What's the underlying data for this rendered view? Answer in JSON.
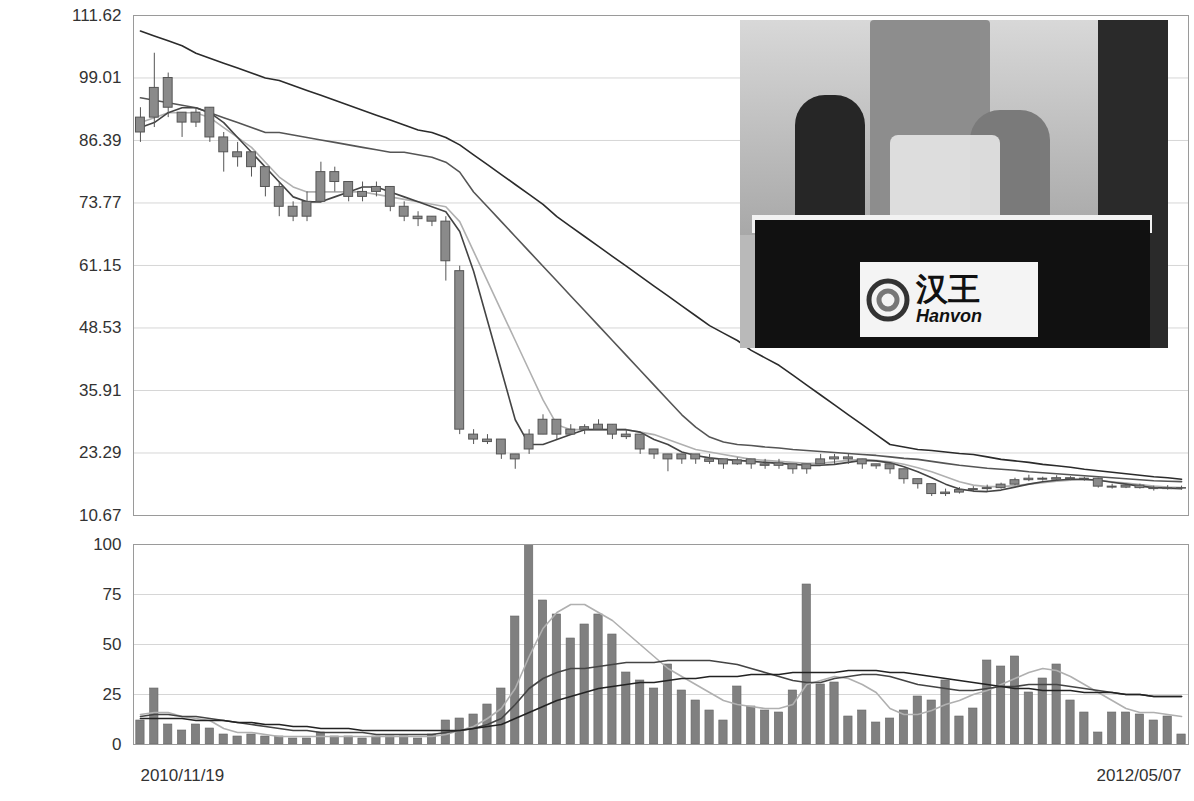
{
  "chart_data": [
    {
      "type": "candlestick",
      "categories": [
        null,
        null,
        null,
        null,
        null,
        null,
        null,
        null,
        null,
        null,
        null,
        null,
        null,
        null,
        null,
        null,
        null,
        null,
        null,
        null,
        null,
        null,
        null,
        null,
        null,
        null,
        null,
        null,
        null,
        null,
        null,
        null,
        null,
        null,
        null,
        null,
        null,
        null,
        null,
        null,
        null,
        null,
        null,
        null,
        null,
        null,
        null,
        null,
        null,
        null,
        null,
        null,
        null,
        null,
        null,
        null,
        null,
        null,
        null,
        null,
        null,
        null,
        null,
        null,
        null,
        null,
        null,
        null,
        null,
        null,
        null,
        null,
        null,
        null,
        null,
        null
      ],
      "open": [
        88,
        91,
        99,
        92,
        90,
        93,
        87,
        84,
        84,
        81,
        77,
        73,
        71,
        74,
        80,
        78,
        75,
        76,
        77,
        73,
        71,
        71,
        70,
        60,
        27,
        26,
        26,
        23,
        24,
        27,
        30,
        27,
        28,
        28,
        29,
        27,
        27,
        24,
        23,
        22,
        23,
        22,
        22,
        21,
        22,
        21,
        20.7,
        21,
        20,
        21,
        22,
        22.4,
        22,
        21,
        21,
        20,
        18,
        17,
        15,
        15.3,
        15.8,
        16,
        16.2,
        16.9,
        17.8,
        18.1,
        17.9,
        18.2,
        18,
        18.1,
        16.5,
        16.3,
        16.7,
        16.2,
        16,
        16.2
      ],
      "high": [
        93,
        104,
        100,
        92,
        93,
        93,
        88,
        86,
        84,
        81,
        78,
        74,
        76,
        82,
        81,
        78,
        78,
        78,
        77,
        74,
        72,
        71,
        71,
        61,
        28,
        27,
        26,
        23,
        28,
        31,
        30,
        29,
        29,
        30,
        29,
        28,
        27,
        24,
        23,
        23,
        23,
        23,
        22,
        22.3,
        22,
        22,
        22,
        21,
        21,
        23,
        23,
        23,
        22,
        21,
        21,
        20,
        18,
        17,
        16,
        16.3,
        16.5,
        16.8,
        17.2,
        18.2,
        18.8,
        18.4,
        18.7,
        18.5,
        18.4,
        18.2,
        17,
        17,
        17,
        16.6,
        16.7,
        16.6
      ],
      "low": [
        86,
        89,
        91,
        87,
        89,
        86,
        80,
        81,
        79,
        75,
        71,
        70,
        70,
        74,
        76,
        74,
        74,
        75,
        72,
        70,
        69,
        69,
        58,
        27,
        25,
        25,
        22,
        20,
        23,
        27,
        26,
        27,
        27,
        28,
        26,
        26,
        23,
        22,
        19.5,
        21,
        21,
        21,
        20,
        20.8,
        20,
        20,
        20,
        19,
        19,
        21,
        21,
        21,
        20,
        20,
        19,
        17,
        16,
        14.5,
        14.5,
        15,
        15.3,
        15.5,
        16,
        16.7,
        17.5,
        17.6,
        17.6,
        17.7,
        17.6,
        16.2,
        16,
        16.1,
        16,
        15.6,
        15.8,
        15.8
      ],
      "close": [
        91,
        97,
        93,
        90,
        92,
        87,
        84,
        83,
        81,
        77,
        73,
        71,
        74,
        80,
        78,
        75,
        76,
        77,
        73,
        71,
        70.5,
        70,
        62,
        28,
        26,
        25.5,
        23,
        22,
        27,
        30,
        27,
        28,
        28.5,
        29,
        27,
        26.5,
        24,
        23,
        22,
        23,
        22,
        21.5,
        21,
        21.8,
        21,
        20.7,
        21.2,
        20,
        21,
        22,
        22.4,
        22,
        21,
        20.6,
        20,
        18,
        17,
        15,
        15.3,
        15.8,
        16,
        16.2,
        16.9,
        17.8,
        18.1,
        17.9,
        18.2,
        18,
        18.1,
        16.5,
        16.3,
        16.7,
        16.2,
        16,
        16.2,
        16.1
      ],
      "color": "#8a8a8a",
      "series": [
        {
          "color": "#2b2b2b",
          "values": [
            108.5,
            107.5,
            106.5,
            105.5,
            104,
            103,
            102,
            101,
            100,
            99,
            98.5,
            97.5,
            96.5,
            95.5,
            94.5,
            93.5,
            92.5,
            91.5,
            90.5,
            89.5,
            88.5,
            88,
            87,
            85.5,
            83.5,
            81.5,
            79.5,
            77.5,
            75.5,
            73.5,
            71,
            69,
            67,
            65,
            63,
            61,
            59,
            57,
            55,
            53,
            51,
            49,
            47.5,
            46,
            44,
            42.5,
            41,
            39,
            37,
            35,
            33,
            31,
            29,
            27,
            25,
            24.5,
            24,
            23.8,
            23.5,
            23.2,
            23,
            22.5,
            22,
            21.7,
            21.4,
            21,
            20.7,
            20.4,
            20,
            19.7,
            19.4,
            19.1,
            18.8,
            18.5,
            18.3,
            18
          ]
        },
        {
          "color": "#555555",
          "values": [
            95,
            94.5,
            94,
            93.5,
            93,
            92,
            91,
            90,
            89,
            88,
            88,
            87.5,
            87,
            86.5,
            86,
            85.5,
            85,
            84.5,
            84,
            84,
            83.5,
            83,
            82,
            80,
            76,
            73,
            70,
            67,
            64,
            61,
            58,
            55,
            52,
            49,
            46,
            43,
            40,
            37,
            34,
            31,
            28.5,
            26.5,
            25.5,
            25,
            24.8,
            24.5,
            24.3,
            24,
            23.8,
            23.6,
            23.4,
            23.2,
            23,
            22.8,
            22.5,
            22.2,
            22,
            21.6,
            21.2,
            20.8,
            20.5,
            20.2,
            20,
            19.8,
            19.5,
            19.3,
            19.1,
            18.9,
            18.7,
            18.5,
            18.3,
            18.1,
            17.9,
            17.7,
            17.6,
            17.5
          ]
        },
        {
          "color": "#b0b0b0",
          "values": [
            90,
            91,
            92,
            92,
            92,
            91,
            89,
            87,
            85,
            82,
            79,
            77,
            76,
            76,
            76,
            76,
            76,
            75.5,
            75,
            74.5,
            74,
            73.5,
            73,
            70,
            64,
            58,
            52,
            46,
            40,
            34,
            29,
            28,
            28,
            28,
            28,
            28,
            27.5,
            27,
            26,
            25,
            24,
            23.5,
            23,
            22.5,
            22,
            21.8,
            21.6,
            21.4,
            21.2,
            21.2,
            21.5,
            21.8,
            22,
            21.8,
            21.5,
            21,
            20.3,
            19.5,
            18.5,
            17.5,
            16.8,
            16.5,
            16.5,
            16.7,
            17,
            17.3,
            17.6,
            17.8,
            17.9,
            17.8,
            17.5,
            17.2,
            16.9,
            16.6,
            16.4,
            16.3
          ]
        },
        {
          "color": "#444444",
          "values": [
            89,
            90,
            92,
            93,
            93,
            92,
            90,
            87,
            84,
            81,
            78,
            75,
            74,
            74,
            75,
            76,
            77,
            77,
            76,
            75,
            74,
            73,
            72,
            68,
            60,
            50,
            40,
            30,
            25,
            25,
            26,
            27,
            28,
            28,
            28,
            28,
            27.5,
            26,
            25,
            23.5,
            22.8,
            22.3,
            22,
            21.8,
            21.6,
            21.4,
            21.2,
            21,
            20.8,
            20.8,
            21,
            21.4,
            21.8,
            21.7,
            21.3,
            20.5,
            19.5,
            18.3,
            17,
            16,
            15.6,
            15.5,
            15.8,
            16.4,
            17,
            17.5,
            17.8,
            18,
            18,
            17.8,
            17.4,
            17,
            16.6,
            16.3,
            16.2,
            16.1
          ]
        }
      ],
      "ylim": [
        10.67,
        111.62
      ],
      "yticks": [
        10.67,
        23.29,
        35.91,
        48.53,
        61.15,
        73.77,
        86.39,
        99.01,
        111.62
      ],
      "grid": true,
      "tick_labels": "y",
      "annotations": [
        "汉王",
        "Hanvon"
      ]
    },
    {
      "type": "bar",
      "categories": [
        "2010/11/19",
        null,
        null,
        null,
        null,
        null,
        null,
        null,
        null,
        null,
        null,
        null,
        null,
        null,
        null,
        null,
        null,
        null,
        null,
        null,
        null,
        null,
        null,
        null,
        null,
        null,
        null,
        null,
        null,
        null,
        null,
        null,
        null,
        null,
        null,
        null,
        null,
        null,
        null,
        null,
        null,
        null,
        null,
        null,
        null,
        null,
        null,
        null,
        null,
        null,
        null,
        null,
        null,
        null,
        null,
        null,
        null,
        null,
        null,
        null,
        null,
        null,
        null,
        null,
        null,
        null,
        null,
        null,
        null,
        null,
        null,
        null,
        null,
        null,
        null,
        "2012/05/07"
      ],
      "values": [
        12,
        28,
        10,
        7,
        10,
        8,
        5,
        4,
        5,
        4,
        4,
        3,
        3,
        6,
        4,
        4,
        3,
        4,
        4,
        4,
        3,
        5,
        12,
        13,
        15,
        20,
        28,
        64,
        100,
        72,
        65,
        53,
        60,
        65,
        55,
        36,
        32,
        28,
        40,
        27,
        22,
        17,
        12,
        29,
        19,
        17,
        16,
        27,
        80,
        30,
        31,
        14,
        17,
        11,
        13,
        17,
        24,
        22,
        32,
        14,
        18,
        42,
        39,
        44,
        26,
        33,
        40,
        22,
        16,
        6,
        16,
        16,
        15,
        12,
        14,
        5
      ],
      "color": "#808080",
      "series": [
        {
          "color": "#b0b0b0",
          "values": [
            15,
            16,
            16,
            14,
            13,
            12,
            8,
            6,
            6,
            5,
            4,
            4,
            4,
            4,
            4,
            4,
            4,
            4,
            4,
            4,
            4,
            4,
            5,
            7,
            9,
            13,
            18,
            28,
            44,
            58,
            66,
            70,
            70,
            66,
            62,
            56,
            50,
            44,
            38,
            34,
            30,
            26,
            22,
            20,
            19,
            18,
            18,
            20,
            30,
            32,
            34,
            33,
            30,
            26,
            18,
            15,
            15,
            17,
            20,
            22,
            25,
            27,
            30,
            33,
            36,
            38,
            37,
            34,
            30,
            26,
            22,
            18,
            16,
            16,
            15,
            14
          ]
        },
        {
          "color": "#444444",
          "values": [
            14,
            15,
            15,
            14,
            14,
            13,
            12,
            11,
            10,
            9,
            8,
            7,
            7,
            6,
            6,
            6,
            6,
            5,
            5,
            5,
            5,
            5,
            6,
            7,
            8,
            10,
            13,
            20,
            28,
            33,
            36,
            38,
            38,
            39,
            40,
            41,
            41,
            41,
            42,
            42,
            42,
            42,
            41,
            40,
            38,
            36,
            34,
            32,
            31,
            31,
            33,
            34,
            35,
            35,
            34,
            32,
            30,
            29,
            28,
            27,
            27,
            28,
            29,
            29,
            30,
            30,
            30,
            29,
            28,
            27,
            26,
            25,
            25,
            24,
            24,
            24
          ]
        },
        {
          "color": "#222222",
          "values": [
            13,
            13,
            13,
            13,
            12,
            12,
            12,
            11,
            11,
            10,
            10,
            9,
            9,
            8,
            8,
            8,
            7,
            7,
            7,
            7,
            7,
            7,
            7,
            7,
            8,
            9,
            10,
            13,
            16,
            19,
            22,
            24,
            26,
            28,
            29,
            30,
            31,
            31,
            32,
            33,
            33,
            34,
            34,
            34,
            35,
            35,
            35,
            36,
            36,
            36,
            36,
            37,
            37,
            37,
            36,
            36,
            35,
            34,
            33,
            32,
            31,
            30,
            29,
            28,
            28,
            27,
            27,
            27,
            26,
            26,
            26,
            25,
            25,
            24,
            24,
            24
          ]
        }
      ],
      "ylim": [
        0,
        100
      ],
      "yticks": [
        0,
        25,
        50,
        75,
        100
      ],
      "grid": true
    }
  ]
}
